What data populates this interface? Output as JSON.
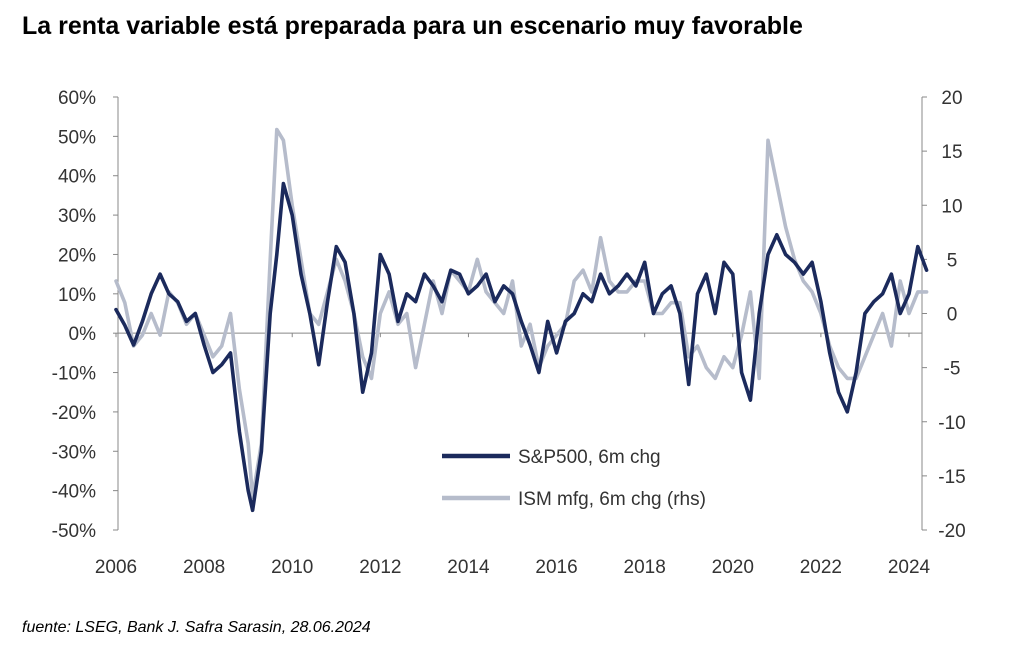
{
  "title": "La renta variable está preparada para un escenario muy favorable",
  "source": "fuente: LSEG, Bank J. Safra Sarasin, 28.06.2024",
  "colors": {
    "sp500": "#1b2a5c",
    "ism": "#b6bccb",
    "axis": "#888888"
  },
  "chart_data": {
    "type": "line",
    "title": "La renta variable está preparada para un escenario muy favorable",
    "xlabel": "",
    "ylabel": "",
    "xlim": [
      2006,
      2024.6
    ],
    "ylim_left": [
      -50,
      60
    ],
    "ylim_right": [
      -20,
      20
    ],
    "x_ticks": [
      2006,
      2008,
      2010,
      2012,
      2014,
      2016,
      2018,
      2020,
      2022,
      2024
    ],
    "x_tick_labels": [
      "2006",
      "2008",
      "2010",
      "2012",
      "2014",
      "2016",
      "2018",
      "2020",
      "2022",
      "2024"
    ],
    "y_left_ticks": [
      60,
      50,
      40,
      30,
      20,
      10,
      0,
      -10,
      -20,
      -30,
      -40,
      -50
    ],
    "y_left_tick_labels": [
      "60%",
      "50%",
      "40%",
      "30%",
      "20%",
      "10%",
      "0%",
      "-10%",
      "-20%",
      "-30%",
      "-40%",
      "-50%"
    ],
    "y_right_ticks": [
      20,
      15,
      10,
      5,
      0,
      -5,
      -10,
      -15,
      -20
    ],
    "y_right_tick_labels": [
      "20",
      "15",
      "10",
      "5",
      "0",
      "-5",
      "-10",
      "-15",
      "-20"
    ],
    "legend_position": "bottom-center",
    "series": [
      {
        "name": "S&P500, 6m chg",
        "axis": "left",
        "x": [
          2006.0,
          2006.2,
          2006.4,
          2006.6,
          2006.8,
          2007.0,
          2007.2,
          2007.4,
          2007.6,
          2007.8,
          2008.0,
          2008.2,
          2008.4,
          2008.6,
          2008.8,
          2009.0,
          2009.1,
          2009.3,
          2009.5,
          2009.65,
          2009.8,
          2010.0,
          2010.2,
          2010.4,
          2010.6,
          2010.8,
          2011.0,
          2011.2,
          2011.4,
          2011.6,
          2011.8,
          2012.0,
          2012.2,
          2012.4,
          2012.6,
          2012.8,
          2013.0,
          2013.2,
          2013.4,
          2013.6,
          2013.8,
          2014.0,
          2014.2,
          2014.4,
          2014.6,
          2014.8,
          2015.0,
          2015.2,
          2015.4,
          2015.6,
          2015.8,
          2016.0,
          2016.2,
          2016.4,
          2016.6,
          2016.8,
          2017.0,
          2017.2,
          2017.4,
          2017.6,
          2017.8,
          2018.0,
          2018.2,
          2018.4,
          2018.6,
          2018.8,
          2019.0,
          2019.2,
          2019.4,
          2019.6,
          2019.8,
          2020.0,
          2020.2,
          2020.4,
          2020.6,
          2020.8,
          2021.0,
          2021.2,
          2021.4,
          2021.6,
          2021.8,
          2022.0,
          2022.2,
          2022.4,
          2022.6,
          2022.8,
          2023.0,
          2023.2,
          2023.4,
          2023.6,
          2023.8,
          2024.0,
          2024.2,
          2024.4
        ],
        "values": [
          6,
          2,
          -3,
          3,
          10,
          15,
          10,
          8,
          3,
          5,
          -3,
          -10,
          -8,
          -5,
          -25,
          -40,
          -45,
          -30,
          5,
          20,
          38,
          30,
          15,
          5,
          -8,
          8,
          22,
          18,
          5,
          -15,
          -5,
          20,
          15,
          3,
          10,
          8,
          15,
          12,
          8,
          16,
          15,
          10,
          12,
          15,
          8,
          12,
          10,
          3,
          -3,
          -10,
          3,
          -5,
          3,
          5,
          10,
          8,
          15,
          10,
          12,
          15,
          12,
          18,
          5,
          10,
          12,
          5,
          -13,
          10,
          15,
          5,
          18,
          15,
          -10,
          -17,
          5,
          20,
          25,
          20,
          18,
          15,
          18,
          8,
          -5,
          -15,
          -20,
          -10,
          5,
          8,
          10,
          15,
          5,
          10,
          22,
          16
        ]
      },
      {
        "name": "ISM mfg, 6m chg (rhs)",
        "axis": "right",
        "x": [
          2006.0,
          2006.2,
          2006.4,
          2006.6,
          2006.8,
          2007.0,
          2007.2,
          2007.4,
          2007.6,
          2007.8,
          2008.0,
          2008.2,
          2008.4,
          2008.6,
          2008.8,
          2009.0,
          2009.1,
          2009.3,
          2009.5,
          2009.65,
          2009.8,
          2010.0,
          2010.2,
          2010.4,
          2010.6,
          2010.8,
          2011.0,
          2011.2,
          2011.4,
          2011.6,
          2011.8,
          2012.0,
          2012.2,
          2012.4,
          2012.6,
          2012.8,
          2013.0,
          2013.2,
          2013.4,
          2013.6,
          2013.8,
          2014.0,
          2014.2,
          2014.4,
          2014.6,
          2014.8,
          2015.0,
          2015.2,
          2015.4,
          2015.6,
          2015.8,
          2016.0,
          2016.2,
          2016.4,
          2016.6,
          2016.8,
          2017.0,
          2017.2,
          2017.4,
          2017.6,
          2017.8,
          2018.0,
          2018.2,
          2018.4,
          2018.6,
          2018.8,
          2019.0,
          2019.2,
          2019.4,
          2019.6,
          2019.8,
          2020.0,
          2020.2,
          2020.4,
          2020.6,
          2020.8,
          2021.0,
          2021.2,
          2021.4,
          2021.6,
          2021.8,
          2022.0,
          2022.2,
          2022.4,
          2022.6,
          2022.8,
          2023.0,
          2023.2,
          2023.4,
          2023.6,
          2023.8,
          2024.0,
          2024.2,
          2024.4
        ],
        "values": [
          3,
          1,
          -3,
          -2,
          0,
          -2,
          2,
          1,
          -1,
          0,
          -2,
          -4,
          -3,
          0,
          -7,
          -12,
          -17,
          -12,
          5,
          17,
          16,
          10,
          5,
          0,
          -1,
          2,
          5,
          3,
          0,
          -4,
          -6,
          0,
          2,
          -1,
          0,
          -5,
          -1,
          3,
          0,
          4,
          3,
          2,
          5,
          2,
          1,
          0,
          3,
          -3,
          -1,
          -5,
          -3,
          -2,
          -1,
          3,
          4,
          2,
          7,
          3,
          2,
          2,
          3,
          3,
          0,
          0,
          1,
          1,
          -4,
          -3,
          -5,
          -6,
          -4,
          -5,
          -2,
          2,
          -6,
          16,
          12,
          8,
          5,
          3,
          2,
          0,
          -3,
          -5,
          -6,
          -6,
          -4,
          -2,
          0,
          -3,
          3,
          0,
          2,
          2
        ]
      }
    ]
  }
}
